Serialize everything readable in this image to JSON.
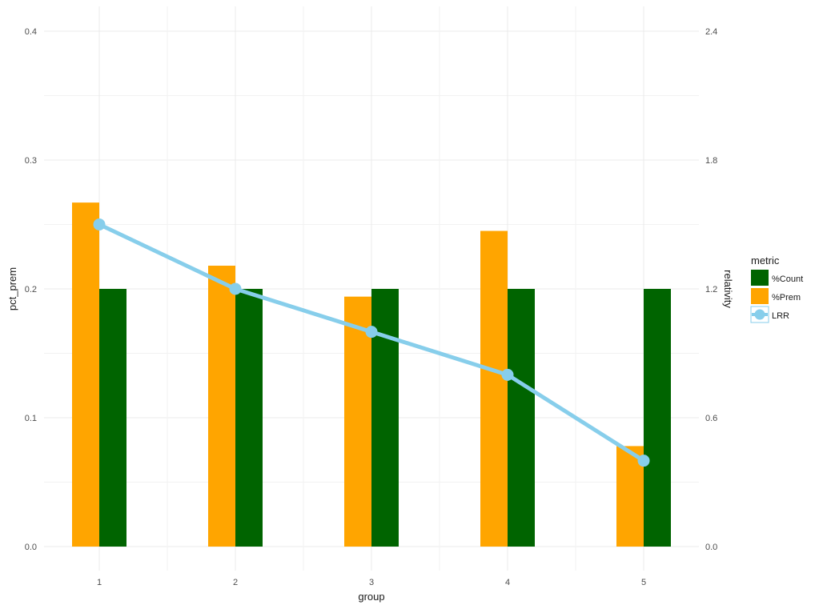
{
  "chart_data": {
    "type": "bar",
    "title": "",
    "xlabel": "group",
    "ylabel": "pct_prem",
    "y2label": "relativity",
    "categories": [
      "1",
      "2",
      "3",
      "4",
      "5"
    ],
    "ylim": [
      0,
      0.4
    ],
    "y2lim": [
      0,
      2.4
    ],
    "yticks": [
      "0.0",
      "0.1",
      "0.2",
      "0.3",
      "0.4"
    ],
    "y2ticks": [
      "0.0",
      "0.6",
      "1.2",
      "1.8",
      "2.4"
    ],
    "grid": true,
    "legend": {
      "title": "metric",
      "position": "right",
      "entries": [
        {
          "label": "%Count",
          "color": "#006400",
          "kind": "bar"
        },
        {
          "label": "%Prem",
          "color": "#FFA500",
          "kind": "bar"
        },
        {
          "label": "LRR",
          "color": "#87CEEB",
          "kind": "line-point"
        }
      ]
    },
    "series": [
      {
        "name": "%Prem",
        "axis": "left",
        "kind": "bar",
        "color": "#FFA500",
        "values": [
          0.267,
          0.218,
          0.194,
          0.245,
          0.078
        ]
      },
      {
        "name": "%Count",
        "axis": "left",
        "kind": "bar",
        "color": "#006400",
        "values": [
          0.2,
          0.2,
          0.2,
          0.2,
          0.2
        ]
      },
      {
        "name": "LRR",
        "axis": "right",
        "kind": "line",
        "color": "#87CEEB",
        "values": [
          1.5,
          1.2,
          1.0,
          0.8,
          0.4
        ]
      }
    ]
  }
}
